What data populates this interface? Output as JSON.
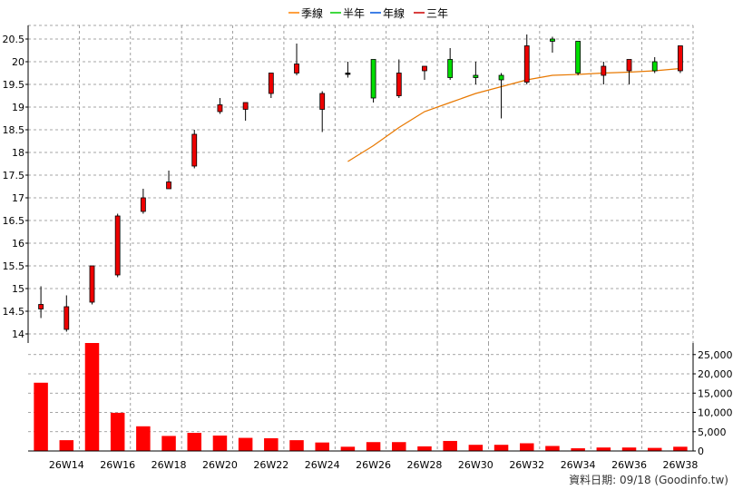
{
  "legend": [
    {
      "label": "季線",
      "color": "#ff8000"
    },
    {
      "label": "半年",
      "color": "#00cc00"
    },
    {
      "label": "年線",
      "color": "#0055dd"
    },
    {
      "label": "三年",
      "color": "#cc0000"
    }
  ],
  "footer": "資料日期: 09/18  (Goodinfo.tw)",
  "colors": {
    "up": "#ee0000",
    "down": "#00dd00",
    "flat": "#000000",
    "ma": "#e87800",
    "volume": "#ff0000",
    "grid": "#888888"
  },
  "chart_data": [
    {
      "type": "candlestick",
      "title": "",
      "ylim": [
        13.8,
        20.8
      ],
      "yticks": [
        14,
        14.5,
        15,
        15.5,
        16,
        16.5,
        17,
        17.5,
        18,
        18.5,
        19,
        19.5,
        20,
        20.5
      ],
      "grid": true,
      "legend_position": "top-center",
      "x_tick_labels": [
        "26W14",
        "26W16",
        "26W18",
        "26W20",
        "26W22",
        "26W24",
        "26W26",
        "26W28",
        "26W30",
        "26W32",
        "26W34",
        "26W36",
        "26W38"
      ],
      "candles": [
        {
          "open": 14.55,
          "close": 14.65,
          "high": 15.05,
          "low": 14.35
        },
        {
          "open": 14.1,
          "close": 14.6,
          "high": 14.85,
          "low": 14.05
        },
        {
          "open": 14.7,
          "close": 15.5,
          "high": 15.5,
          "low": 14.65
        },
        {
          "open": 15.3,
          "close": 16.6,
          "high": 16.65,
          "low": 15.25
        },
        {
          "open": 16.7,
          "close": 17.0,
          "high": 17.2,
          "low": 16.65
        },
        {
          "open": 17.2,
          "close": 17.35,
          "high": 17.6,
          "low": 17.2
        },
        {
          "open": 17.7,
          "close": 18.4,
          "high": 18.5,
          "low": 17.65
        },
        {
          "open": 18.9,
          "close": 19.05,
          "high": 19.2,
          "low": 18.85
        },
        {
          "open": 18.95,
          "close": 19.1,
          "high": 19.1,
          "low": 18.7
        },
        {
          "open": 19.3,
          "close": 19.75,
          "high": 19.75,
          "low": 19.2
        },
        {
          "open": 19.75,
          "close": 19.95,
          "high": 20.4,
          "low": 19.7
        },
        {
          "open": 18.95,
          "close": 19.3,
          "high": 19.35,
          "low": 18.45
        },
        {
          "open": 19.75,
          "close": 19.75,
          "high": 20.0,
          "low": 19.65
        },
        {
          "open": 20.05,
          "close": 19.2,
          "high": 20.05,
          "low": 19.1
        },
        {
          "open": 19.25,
          "close": 19.75,
          "high": 20.05,
          "low": 19.2
        },
        {
          "open": 19.8,
          "close": 19.9,
          "high": 19.9,
          "low": 19.6
        },
        {
          "open": 20.05,
          "close": 19.65,
          "high": 20.3,
          "low": 19.6
        },
        {
          "open": 19.7,
          "close": 19.65,
          "high": 20.0,
          "low": 19.5
        },
        {
          "open": 19.7,
          "close": 19.6,
          "high": 19.75,
          "low": 18.75
        },
        {
          "open": 19.55,
          "close": 20.35,
          "high": 20.6,
          "low": 19.5
        },
        {
          "open": 20.5,
          "close": 20.45,
          "high": 20.55,
          "low": 20.2
        },
        {
          "open": 20.45,
          "close": 19.75,
          "high": 20.45,
          "low": 19.7
        },
        {
          "open": 19.7,
          "close": 19.9,
          "high": 20.0,
          "low": 19.5
        },
        {
          "open": 19.8,
          "close": 20.05,
          "high": 20.05,
          "low": 19.5
        },
        {
          "open": 20.0,
          "close": 19.8,
          "high": 20.1,
          "low": 19.75
        },
        {
          "open": 19.8,
          "close": 20.35,
          "high": 20.35,
          "low": 19.75
        }
      ],
      "series": [
        {
          "name": "季線",
          "values": [
            null,
            null,
            null,
            null,
            null,
            null,
            null,
            null,
            null,
            null,
            null,
            null,
            17.8,
            18.15,
            18.55,
            18.9,
            19.1,
            19.3,
            19.45,
            19.6,
            19.7,
            19.72,
            19.75,
            19.77,
            19.8,
            19.85
          ]
        }
      ]
    },
    {
      "type": "bar",
      "title": "",
      "ylim": [
        0,
        28000
      ],
      "yticks": [
        0,
        5000,
        10000,
        15000,
        20000,
        25000
      ],
      "ytick_labels": [
        "0",
        "5,000",
        "10,000",
        "15,000",
        "20,000",
        "25,000"
      ],
      "values": [
        17700,
        2800,
        28000,
        9900,
        6400,
        3900,
        4700,
        4000,
        3400,
        3300,
        2800,
        2200,
        1100,
        2300,
        2300,
        1200,
        2600,
        1600,
        1600,
        2000,
        1300,
        700,
        900,
        900,
        800,
        1100
      ]
    }
  ]
}
